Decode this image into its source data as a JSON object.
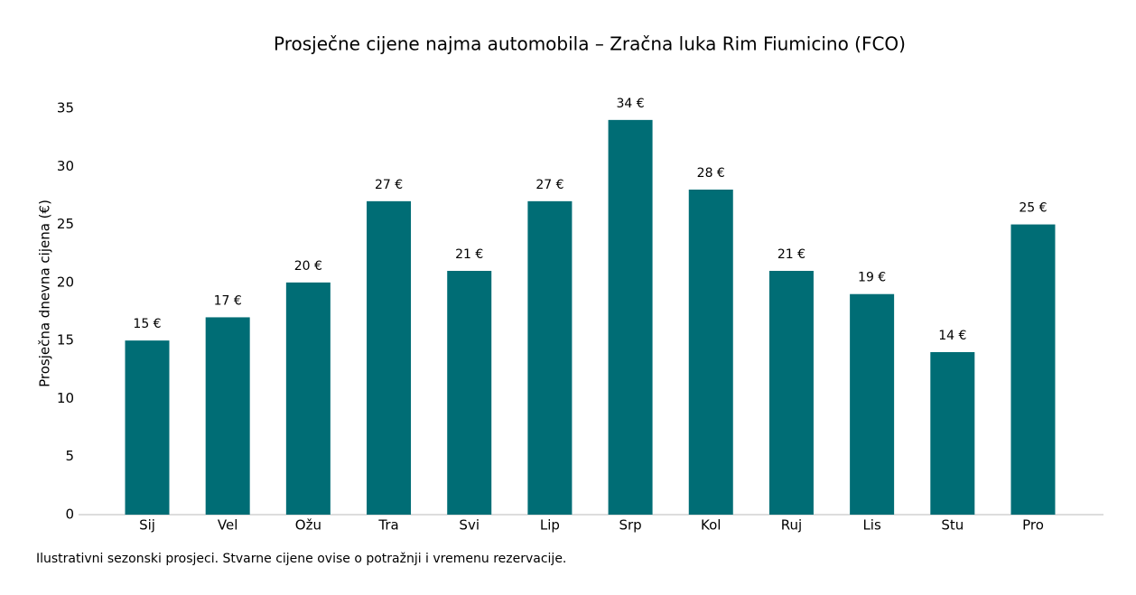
{
  "chart_data": {
    "type": "bar",
    "title": "Prosječne cijene najma automobila – Zračna luka Rim Fiumicino (FCO)",
    "y_label": "Prosječna dnevna cijena (€)",
    "footnote": "Ilustrativni sezonski prosjeci. Stvarne cijene ovise o potražnji i vremenu rezervacije.",
    "categories": [
      "Sij",
      "Vel",
      "Ožu",
      "Tra",
      "Svi",
      "Lip",
      "Srp",
      "Kol",
      "Ruj",
      "Lis",
      "Stu",
      "Pro"
    ],
    "values": [
      15,
      17,
      20,
      27,
      21,
      27,
      34,
      28,
      21,
      19,
      14,
      25
    ],
    "value_labels": [
      "15 €",
      "17 €",
      "20 €",
      "27 €",
      "21 €",
      "27 €",
      "34 €",
      "28 €",
      "21 €",
      "19 €",
      "14 €",
      "25 €"
    ],
    "color": "#006d75",
    "ylim": [
      0,
      35
    ],
    "yticks": [
      0,
      5,
      10,
      15,
      20,
      25,
      30,
      35
    ],
    "grid": false
  }
}
